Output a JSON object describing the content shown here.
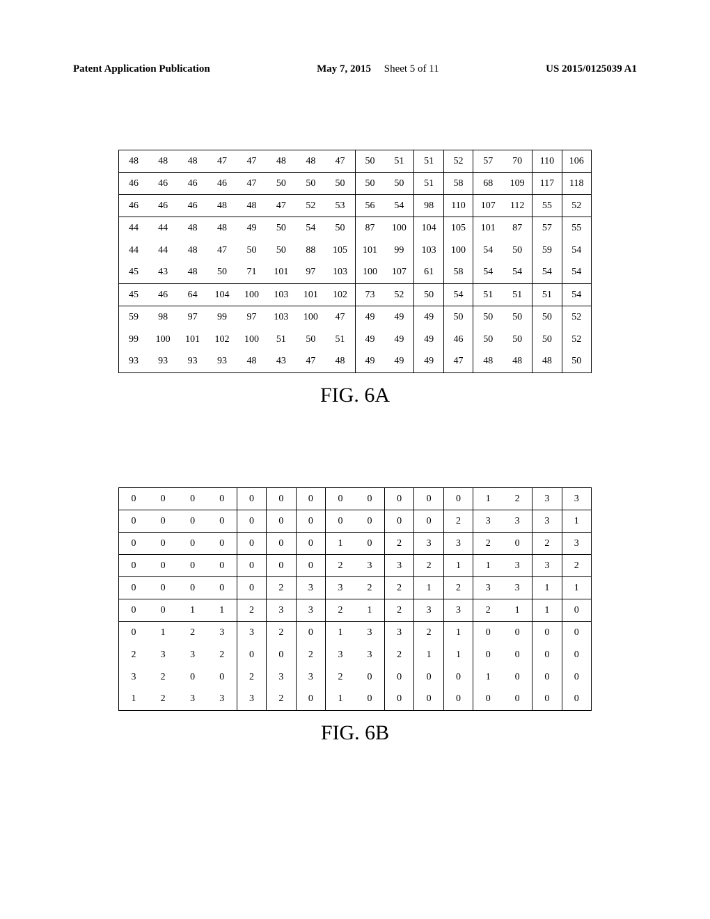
{
  "header": {
    "publication": "Patent Application Publication",
    "date": "May 7, 2015",
    "sheet": "Sheet 5 of 11",
    "docnum": "US 2015/0125039 A1"
  },
  "fig6a": {
    "type": "table",
    "caption": "FIG. 6A",
    "n_cols": 16,
    "n_rows": 10,
    "col_vlines_after": [
      7,
      9,
      10,
      11,
      13,
      14
    ],
    "row_hlines_before": [
      1,
      2,
      3,
      6,
      7
    ],
    "cells": [
      [
        "48",
        "48",
        "48",
        "47",
        "47",
        "48",
        "48",
        "47",
        "50",
        "51",
        "51",
        "52",
        "57",
        "70",
        "110",
        "106"
      ],
      [
        "46",
        "46",
        "46",
        "46",
        "47",
        "50",
        "50",
        "50",
        "50",
        "50",
        "51",
        "58",
        "68",
        "109",
        "117",
        "118"
      ],
      [
        "46",
        "46",
        "46",
        "48",
        "48",
        "47",
        "52",
        "53",
        "56",
        "54",
        "98",
        "110",
        "107",
        "112",
        "55",
        "52"
      ],
      [
        "44",
        "44",
        "48",
        "48",
        "49",
        "50",
        "54",
        "50",
        "87",
        "100",
        "104",
        "105",
        "101",
        "87",
        "57",
        "55"
      ],
      [
        "44",
        "44",
        "48",
        "47",
        "50",
        "50",
        "88",
        "105",
        "101",
        "99",
        "103",
        "100",
        "54",
        "50",
        "59",
        "54"
      ],
      [
        "45",
        "43",
        "48",
        "50",
        "71",
        "101",
        "97",
        "103",
        "100",
        "107",
        "61",
        "58",
        "54",
        "54",
        "54",
        "54"
      ],
      [
        "45",
        "46",
        "64",
        "104",
        "100",
        "103",
        "101",
        "102",
        "73",
        "52",
        "50",
        "54",
        "51",
        "51",
        "51",
        "54"
      ],
      [
        "59",
        "98",
        "97",
        "99",
        "97",
        "103",
        "100",
        "47",
        "49",
        "49",
        "49",
        "50",
        "50",
        "50",
        "50",
        "52"
      ],
      [
        "99",
        "100",
        "101",
        "102",
        "100",
        "51",
        "50",
        "51",
        "49",
        "49",
        "49",
        "46",
        "50",
        "50",
        "50",
        "52"
      ],
      [
        "93",
        "93",
        "93",
        "93",
        "48",
        "43",
        "47",
        "48",
        "49",
        "49",
        "49",
        "47",
        "48",
        "48",
        "48",
        "50"
      ]
    ],
    "background_color": "#ffffff",
    "border_color": "#000000",
    "text_color": "#000000",
    "cell_fontsize": 14,
    "caption_fontsize": 30
  },
  "fig6b": {
    "type": "table",
    "caption": "FIG. 6B",
    "n_cols": 16,
    "n_rows": 10,
    "col_vlines_after": [
      3,
      4,
      5,
      6,
      8,
      9,
      10,
      11,
      13,
      14
    ],
    "row_hlines_before": [
      1,
      2,
      3,
      4,
      5,
      6
    ],
    "cells": [
      [
        "0",
        "0",
        "0",
        "0",
        "0",
        "0",
        "0",
        "0",
        "0",
        "0",
        "0",
        "0",
        "1",
        "2",
        "3",
        "3"
      ],
      [
        "0",
        "0",
        "0",
        "0",
        "0",
        "0",
        "0",
        "0",
        "0",
        "0",
        "0",
        "2",
        "3",
        "3",
        "3",
        "1"
      ],
      [
        "0",
        "0",
        "0",
        "0",
        "0",
        "0",
        "0",
        "1",
        "0",
        "2",
        "3",
        "3",
        "2",
        "0",
        "2",
        "3"
      ],
      [
        "0",
        "0",
        "0",
        "0",
        "0",
        "0",
        "0",
        "2",
        "3",
        "3",
        "2",
        "1",
        "1",
        "3",
        "3",
        "2"
      ],
      [
        "0",
        "0",
        "0",
        "0",
        "0",
        "2",
        "3",
        "3",
        "2",
        "2",
        "1",
        "2",
        "3",
        "3",
        "1",
        "1"
      ],
      [
        "0",
        "0",
        "1",
        "1",
        "2",
        "3",
        "3",
        "2",
        "1",
        "2",
        "3",
        "3",
        "2",
        "1",
        "1",
        "0"
      ],
      [
        "0",
        "1",
        "2",
        "3",
        "3",
        "2",
        "0",
        "1",
        "3",
        "3",
        "2",
        "1",
        "0",
        "0",
        "0",
        "0"
      ],
      [
        "2",
        "3",
        "3",
        "2",
        "0",
        "0",
        "2",
        "3",
        "3",
        "2",
        "1",
        "1",
        "0",
        "0",
        "0",
        "0"
      ],
      [
        "3",
        "2",
        "0",
        "0",
        "2",
        "3",
        "3",
        "2",
        "0",
        "0",
        "0",
        "0",
        "1",
        "0",
        "0",
        "0"
      ],
      [
        "1",
        "2",
        "3",
        "3",
        "3",
        "2",
        "0",
        "1",
        "0",
        "0",
        "0",
        "0",
        "0",
        "0",
        "0",
        "0"
      ]
    ],
    "background_color": "#ffffff",
    "border_color": "#000000",
    "text_color": "#000000",
    "cell_fontsize": 14,
    "caption_fontsize": 30
  }
}
